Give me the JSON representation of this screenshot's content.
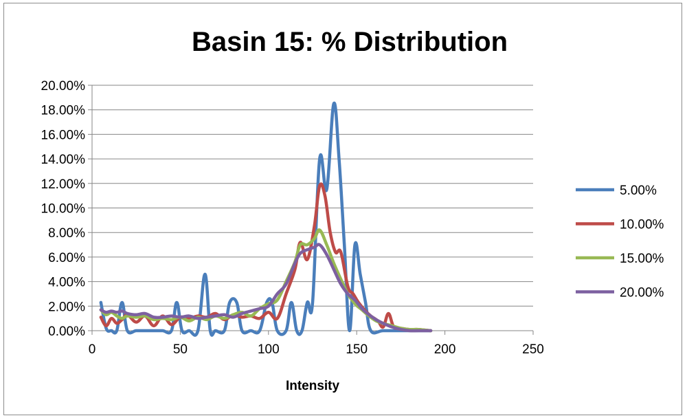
{
  "chart_data": {
    "type": "line",
    "title": "Basin 15: % Distribution",
    "xlabel": "Intensity",
    "ylabel": "",
    "xlim": [
      0,
      250
    ],
    "ylim": [
      0,
      0.2
    ],
    "x_ticks": [
      "0",
      "50",
      "100",
      "150",
      "200",
      "250"
    ],
    "y_ticks": [
      "0.00%",
      "2.00%",
      "4.00%",
      "6.00%",
      "8.00%",
      "10.00%",
      "12.00%",
      "14.00%",
      "16.00%",
      "18.00%",
      "20.00%"
    ],
    "grid": "horizontal",
    "legend_position": "right",
    "series": [
      {
        "name": "5.00%",
        "color": "#4a7ebb",
        "points": [
          [
            5,
            0.023
          ],
          [
            8,
            0.002
          ],
          [
            11,
            0
          ],
          [
            14,
            0
          ],
          [
            17,
            0.023
          ],
          [
            20,
            0
          ],
          [
            25,
            0
          ],
          [
            30,
            0
          ],
          [
            35,
            0
          ],
          [
            40,
            0
          ],
          [
            45,
            0
          ],
          [
            48,
            0.023
          ],
          [
            51,
            0
          ],
          [
            55,
            0
          ],
          [
            60,
            0
          ],
          [
            64,
            0.046
          ],
          [
            67,
            0
          ],
          [
            70,
            0
          ],
          [
            75,
            0
          ],
          [
            78,
            0.023
          ],
          [
            82,
            0.023
          ],
          [
            85,
            0
          ],
          [
            90,
            0
          ],
          [
            95,
            0
          ],
          [
            99,
            0.023
          ],
          [
            102,
            0.023
          ],
          [
            105,
            0
          ],
          [
            110,
            0
          ],
          [
            113,
            0.023
          ],
          [
            116,
            0
          ],
          [
            119,
            0
          ],
          [
            122,
            0.023
          ],
          [
            125,
            0.023
          ],
          [
            129,
            0.14
          ],
          [
            133,
            0.115
          ],
          [
            137,
            0.185
          ],
          [
            140,
            0.14
          ],
          [
            143,
            0.07
          ],
          [
            146,
            0
          ],
          [
            149,
            0.07
          ],
          [
            152,
            0.046
          ],
          [
            155,
            0.023
          ],
          [
            158,
            0
          ],
          [
            165,
            0
          ],
          [
            175,
            0
          ],
          [
            185,
            0
          ],
          [
            192,
            0
          ]
        ]
      },
      {
        "name": "10.00%",
        "color": "#be4b48",
        "points": [
          [
            5,
            0.011
          ],
          [
            8,
            0.004
          ],
          [
            11,
            0.01
          ],
          [
            14,
            0.006
          ],
          [
            17,
            0.009
          ],
          [
            20,
            0.013
          ],
          [
            25,
            0.007
          ],
          [
            30,
            0.012
          ],
          [
            35,
            0.004
          ],
          [
            40,
            0.012
          ],
          [
            45,
            0.005
          ],
          [
            50,
            0.011
          ],
          [
            55,
            0.01
          ],
          [
            60,
            0.012
          ],
          [
            65,
            0.011
          ],
          [
            70,
            0.014
          ],
          [
            75,
            0.009
          ],
          [
            80,
            0.013
          ],
          [
            85,
            0.011
          ],
          [
            90,
            0.012
          ],
          [
            95,
            0.01
          ],
          [
            100,
            0.015
          ],
          [
            105,
            0.01
          ],
          [
            110,
            0.03
          ],
          [
            115,
            0.05
          ],
          [
            118,
            0.072
          ],
          [
            122,
            0.058
          ],
          [
            126,
            0.085
          ],
          [
            129,
            0.118
          ],
          [
            132,
            0.11
          ],
          [
            135,
            0.08
          ],
          [
            138,
            0.064
          ],
          [
            141,
            0.064
          ],
          [
            145,
            0.036
          ],
          [
            148,
            0.03
          ],
          [
            151,
            0.023
          ],
          [
            155,
            0.016
          ],
          [
            158,
            0.012
          ],
          [
            162,
            0.008
          ],
          [
            165,
            0.003
          ],
          [
            168,
            0.014
          ],
          [
            171,
            0.003
          ],
          [
            175,
            0.002
          ],
          [
            180,
            0.001
          ],
          [
            185,
            0.001
          ],
          [
            192,
            0
          ]
        ]
      },
      {
        "name": "15.00%",
        "color": "#98b954",
        "points": [
          [
            5,
            0.017
          ],
          [
            8,
            0.013
          ],
          [
            11,
            0.015
          ],
          [
            14,
            0.012
          ],
          [
            17,
            0.01
          ],
          [
            20,
            0.012
          ],
          [
            25,
            0.011
          ],
          [
            30,
            0.012
          ],
          [
            35,
            0.009
          ],
          [
            40,
            0.01
          ],
          [
            45,
            0.009
          ],
          [
            50,
            0.011
          ],
          [
            55,
            0.008
          ],
          [
            60,
            0.011
          ],
          [
            65,
            0.009
          ],
          [
            70,
            0.012
          ],
          [
            75,
            0.01
          ],
          [
            80,
            0.013
          ],
          [
            85,
            0.015
          ],
          [
            90,
            0.012
          ],
          [
            95,
            0.018
          ],
          [
            100,
            0.022
          ],
          [
            105,
            0.025
          ],
          [
            110,
            0.04
          ],
          [
            115,
            0.056
          ],
          [
            118,
            0.07
          ],
          [
            122,
            0.07
          ],
          [
            126,
            0.075
          ],
          [
            129,
            0.082
          ],
          [
            133,
            0.07
          ],
          [
            137,
            0.055
          ],
          [
            141,
            0.042
          ],
          [
            145,
            0.03
          ],
          [
            149,
            0.022
          ],
          [
            153,
            0.017
          ],
          [
            157,
            0.012
          ],
          [
            161,
            0.008
          ],
          [
            165,
            0.006
          ],
          [
            170,
            0.004
          ],
          [
            175,
            0.002
          ],
          [
            180,
            0.001
          ],
          [
            185,
            0.001
          ],
          [
            192,
            0
          ]
        ]
      },
      {
        "name": "20.00%",
        "color": "#7d60a0",
        "points": [
          [
            5,
            0.017
          ],
          [
            8,
            0.015
          ],
          [
            11,
            0.016
          ],
          [
            14,
            0.015
          ],
          [
            17,
            0.016
          ],
          [
            20,
            0.014
          ],
          [
            25,
            0.013
          ],
          [
            30,
            0.014
          ],
          [
            35,
            0.011
          ],
          [
            40,
            0.011
          ],
          [
            45,
            0.012
          ],
          [
            50,
            0.011
          ],
          [
            55,
            0.012
          ],
          [
            60,
            0.01
          ],
          [
            65,
            0.011
          ],
          [
            70,
            0.012
          ],
          [
            75,
            0.013
          ],
          [
            80,
            0.011
          ],
          [
            85,
            0.014
          ],
          [
            90,
            0.016
          ],
          [
            95,
            0.018
          ],
          [
            100,
            0.02
          ],
          [
            105,
            0.03
          ],
          [
            110,
            0.038
          ],
          [
            115,
            0.055
          ],
          [
            118,
            0.063
          ],
          [
            122,
            0.066
          ],
          [
            126,
            0.068
          ],
          [
            129,
            0.07
          ],
          [
            133,
            0.062
          ],
          [
            137,
            0.05
          ],
          [
            141,
            0.038
          ],
          [
            145,
            0.03
          ],
          [
            149,
            0.025
          ],
          [
            153,
            0.018
          ],
          [
            157,
            0.013
          ],
          [
            161,
            0.009
          ],
          [
            165,
            0.006
          ],
          [
            170,
            0.003
          ],
          [
            175,
            0.001
          ],
          [
            180,
            0
          ],
          [
            185,
            0
          ],
          [
            192,
            0
          ]
        ]
      }
    ]
  }
}
